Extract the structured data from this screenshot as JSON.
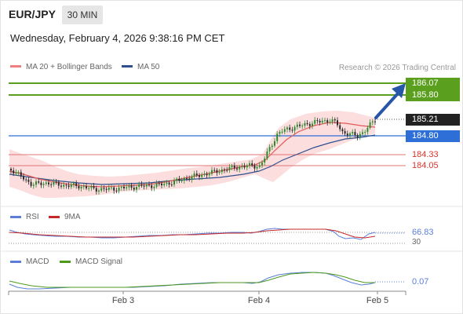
{
  "header": {
    "symbol": "EUR/JPY",
    "timeframe": "30 MIN",
    "datetime": "Wednesday, February 4, 2026 9:38:16 PM CET"
  },
  "legend": {
    "ma20_bb": "MA 20 + Bollinger Bands",
    "ma50": "MA 50",
    "credit": "Research © 2026 Trading Central"
  },
  "levels": {
    "target_high": "186.07",
    "target_low": "185.80",
    "last_price": "185.21",
    "pivot": "184.80",
    "support1": "184.33",
    "support2": "184.05"
  },
  "rsi": {
    "label": "RSI",
    "ma_label": "9MA",
    "value": "66.83",
    "level_upper": "70",
    "level_lower": "30"
  },
  "macd": {
    "label": "MACD",
    "signal_label": "MACD Signal",
    "value": "0.07"
  },
  "xaxis": {
    "ticks": [
      "Feb 3",
      "Feb 4",
      "Feb 5"
    ]
  },
  "colors": {
    "target": "#5aa01e",
    "pivot": "#2d6fd6",
    "support": "#d9342b",
    "last_price_bg": "#222222",
    "ma20": "#e35a5a",
    "ma50": "#2f4f8f",
    "bollinger_fill": "#fcd5d5",
    "rsi_line": "#5b7fd8",
    "rsi_ma": "#c62828",
    "macd_line": "#5b7fd8",
    "macd_signal": "#4c9a1c",
    "arrow": "#2756a8",
    "candle_up": "#2e8b2e",
    "candle_down": "#2b2b2b"
  }
}
